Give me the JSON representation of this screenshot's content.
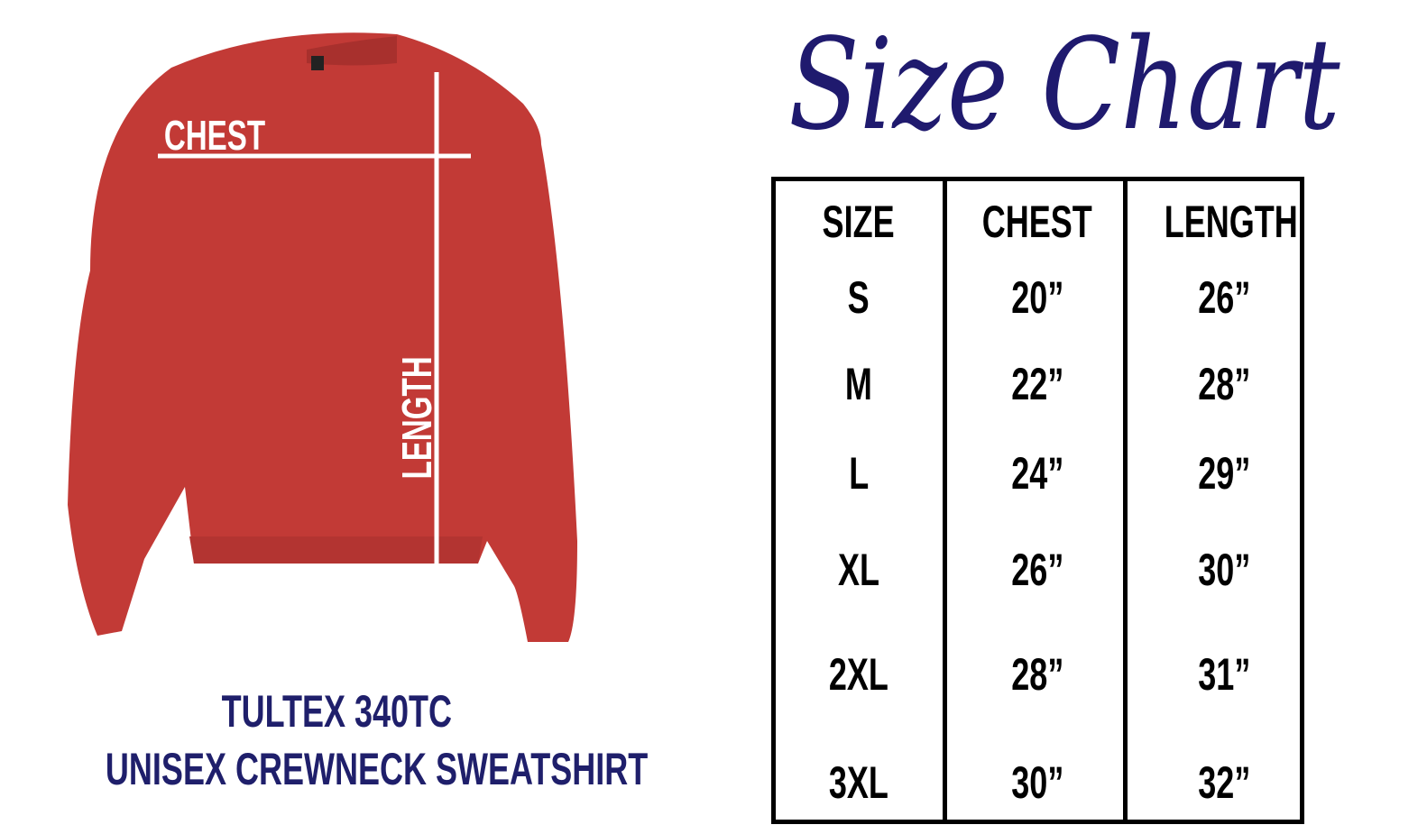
{
  "title": "Size Chart",
  "garment": {
    "chest_label": "CHEST",
    "length_label": "LENGTH",
    "color": "#c23a36"
  },
  "caption": {
    "line1": "TULTEX 340TC",
    "line2": "UNISEX CREWNECK SWEATSHIRT"
  },
  "table": {
    "headers": [
      "SIZE",
      "CHEST",
      "LENGTH"
    ],
    "rows": [
      [
        "S",
        "20”",
        "26”"
      ],
      [
        "M",
        "22”",
        "28”"
      ],
      [
        "L",
        "24”",
        "29”"
      ],
      [
        "XL",
        "26”",
        "30”"
      ],
      [
        "2XL",
        "28”",
        "31”"
      ],
      [
        "3XL",
        "30”",
        "32”"
      ]
    ]
  },
  "colors": {
    "navy": "#1f1f6b",
    "border": "#000000"
  }
}
